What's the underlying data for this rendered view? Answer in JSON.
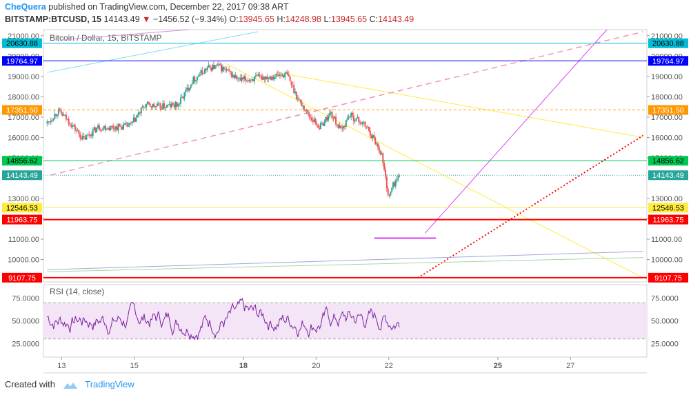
{
  "header": {
    "author": "CheQuera",
    "published_text": "published on TradingView.com, December 22, 2017 09:38 ART",
    "symbol": "BITSTAMP:BTCUSD, 15",
    "last": "14143.49",
    "change_arrow": "▼",
    "change": "−1456.52 (−9.34%)",
    "o_label": "O:",
    "o_val": "13945.65",
    "h_label": "H:",
    "h_val": "14248.98",
    "l_label": "L:",
    "l_val": "13945.65",
    "c_label": "C:",
    "c_val": "14143.49"
  },
  "footer": {
    "created_with": "Created with",
    "brand": "TradingView"
  },
  "colors": {
    "up": "#26a69a",
    "down": "#ef5350",
    "rsi": "#7b1fa2",
    "rsi_band": "#f3e5f5"
  },
  "chart_data": [
    {
      "type": "candlestick",
      "title": "Bitcoin / Dollar, 15, BITSTAMP",
      "ylim": [
        8900,
        21300
      ],
      "y_ticks": [
        "21000.00",
        "20000.00",
        "19000.00",
        "18000.00",
        "17000.00",
        "16000.00",
        "15000.00",
        "13000.00",
        "12000.00",
        "11000.00",
        "10000.00"
      ],
      "x_ticks": [
        "13",
        "15",
        "18",
        "20",
        "22",
        "25",
        "27"
      ],
      "x_tick_bold": [
        "18",
        "25"
      ],
      "xlim": [
        12.5,
        29.1
      ],
      "price_path": [
        [
          12.6,
          16700
        ],
        [
          12.9,
          17300
        ],
        [
          13.2,
          16800
        ],
        [
          13.6,
          15900
        ],
        [
          14.0,
          16500
        ],
        [
          14.5,
          16500
        ],
        [
          14.9,
          16600
        ],
        [
          15.3,
          17600
        ],
        [
          15.7,
          17500
        ],
        [
          16.2,
          17600
        ],
        [
          16.6,
          18800
        ],
        [
          17.0,
          19400
        ],
        [
          17.3,
          19500
        ],
        [
          17.5,
          19300
        ],
        [
          17.9,
          18800
        ],
        [
          18.3,
          18900
        ],
        [
          18.7,
          19000
        ],
        [
          19.2,
          19100
        ],
        [
          19.5,
          17900
        ],
        [
          19.8,
          17100
        ],
        [
          20.1,
          16500
        ],
        [
          20.4,
          17200
        ],
        [
          20.7,
          16300
        ],
        [
          20.9,
          17100
        ],
        [
          21.2,
          16800
        ],
        [
          21.4,
          16500
        ],
        [
          21.6,
          15900
        ],
        [
          21.8,
          15200
        ],
        [
          22.0,
          13000
        ],
        [
          22.1,
          13600
        ],
        [
          22.3,
          14140
        ]
      ],
      "hlines": [
        {
          "value": 20630.88,
          "label": "20630.88",
          "color": "#00bcd4"
        },
        {
          "value": 19764.97,
          "label": "19764.97",
          "color": "#0000ff"
        },
        {
          "value": 17351.5,
          "label": "17351.50",
          "color": "#ff9800"
        },
        {
          "value": 14856.62,
          "label": "14856.62",
          "color": "#00c853"
        },
        {
          "value": 14143.49,
          "label": "14143.49",
          "color": "#26a69a"
        },
        {
          "value": 12546.53,
          "label": "12546.53",
          "color": "#ffeb3b"
        },
        {
          "value": 11963.75,
          "label": "11963.75",
          "color": "#ff0000"
        },
        {
          "value": 9107.75,
          "label": "9107.75",
          "color": "#ff0000"
        }
      ],
      "trendlines": [
        {
          "p1": [
            17.5,
            19650
          ],
          "p2": [
            29.0,
            9100
          ],
          "color": "#ffeb3b",
          "style": "solid"
        },
        {
          "p1": [
            18.9,
            19200
          ],
          "p2": [
            29.0,
            16000
          ],
          "color": "#ffeb3b",
          "style": "solid"
        },
        {
          "p1": [
            12.7,
            14150
          ],
          "p2": [
            29.0,
            21200
          ],
          "color": "#f48fb1",
          "style": "dashed"
        },
        {
          "p1": [
            12.6,
            19200
          ],
          "p2": [
            18.4,
            21200
          ],
          "color": "#80deea",
          "style": "solid"
        },
        {
          "p1": [
            13.0,
            20800
          ],
          "p2": [
            16.5,
            21300
          ],
          "color": "#ce93d8",
          "style": "solid"
        },
        {
          "p1": [
            23.0,
            11300
          ],
          "p2": [
            28.0,
            21300
          ],
          "color": "#e040fb",
          "style": "solid"
        },
        {
          "p1": [
            22.8,
            9100
          ],
          "p2": [
            29.0,
            16100
          ],
          "color": "#ff0000",
          "style": "dotted"
        },
        {
          "p1": [
            12.6,
            9500
          ],
          "p2": [
            29.0,
            10400
          ],
          "color": "#9fa8da",
          "style": "solid"
        },
        {
          "p1": [
            12.6,
            9400
          ],
          "p2": [
            29.0,
            10100
          ],
          "color": "#a5d6a7",
          "style": "solid"
        },
        {
          "p1": [
            21.6,
            11050
          ],
          "p2": [
            23.3,
            11050
          ],
          "color": "#e040fb",
          "style": "thick"
        }
      ]
    },
    {
      "type": "line",
      "title": "RSI (14, close)",
      "ylim": [
        10,
        90
      ],
      "y_ticks": [
        "75.0000",
        "50.0000",
        "25.0000"
      ],
      "band": [
        30,
        70
      ],
      "xlim": [
        12.5,
        29.1
      ],
      "x_end": 22.3,
      "rsi_seed": 7
    }
  ]
}
